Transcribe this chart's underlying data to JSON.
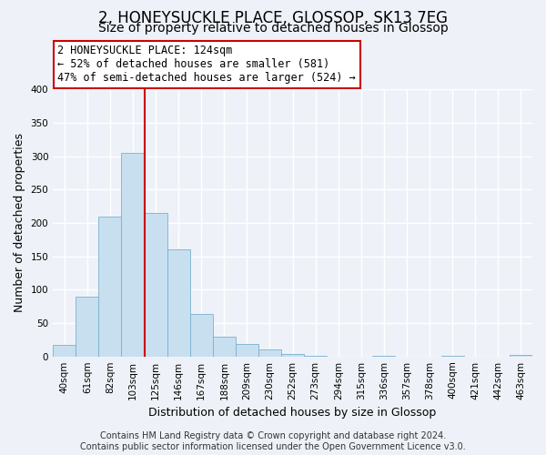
{
  "title": "2, HONEYSUCKLE PLACE, GLOSSOP, SK13 7EG",
  "subtitle": "Size of property relative to detached houses in Glossop",
  "xlabel": "Distribution of detached houses by size in Glossop",
  "ylabel": "Number of detached properties",
  "bar_color": "#c8dff0",
  "bar_edge_color": "#7ab0d0",
  "background_color": "#eef2f8",
  "grid_color": "#ffffff",
  "bin_labels": [
    "40sqm",
    "61sqm",
    "82sqm",
    "103sqm",
    "125sqm",
    "146sqm",
    "167sqm",
    "188sqm",
    "209sqm",
    "230sqm",
    "252sqm",
    "273sqm",
    "294sqm",
    "315sqm",
    "336sqm",
    "357sqm",
    "378sqm",
    "400sqm",
    "421sqm",
    "442sqm",
    "463sqm"
  ],
  "bar_heights": [
    17,
    90,
    210,
    305,
    215,
    160,
    63,
    30,
    19,
    10,
    4,
    1,
    0,
    0,
    1,
    0,
    0,
    1,
    0,
    0,
    2
  ],
  "ylim": [
    0,
    400
  ],
  "yticks": [
    0,
    50,
    100,
    150,
    200,
    250,
    300,
    350,
    400
  ],
  "marker_bin_index": 4,
  "annotation_line1": "2 HONEYSUCKLE PLACE: 124sqm",
  "annotation_line2": "← 52% of detached houses are smaller (581)",
  "annotation_line3": "47% of semi-detached houses are larger (524) →",
  "footer_line1": "Contains HM Land Registry data © Crown copyright and database right 2024.",
  "footer_line2": "Contains public sector information licensed under the Open Government Licence v3.0.",
  "title_fontsize": 12,
  "subtitle_fontsize": 10,
  "axis_label_fontsize": 9,
  "tick_fontsize": 7.5,
  "annotation_fontsize": 8.5,
  "footer_fontsize": 7
}
